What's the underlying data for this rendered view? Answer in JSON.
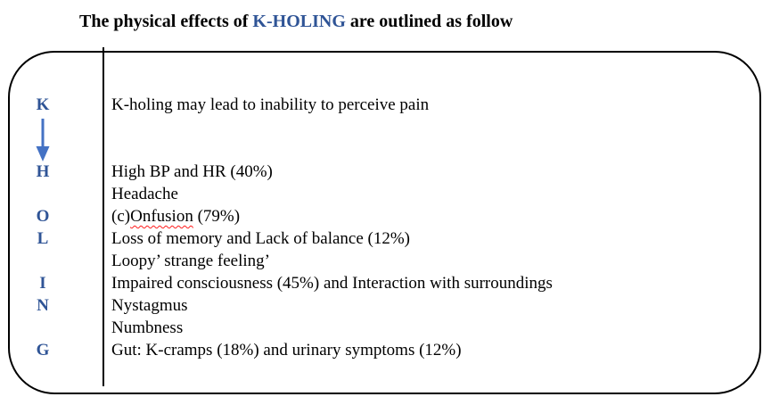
{
  "title": {
    "prefix": "The physical effects of ",
    "highlight": "K-HOLING",
    "suffix": " are outlined as follow"
  },
  "colors": {
    "mnemonic_blue": "#2F5496",
    "arrow_blue": "#4472C4",
    "squiggle_red": "#ff1a1a",
    "border_black": "#000000"
  },
  "icons": {
    "down_arrow": "down-arrow"
  },
  "rows": [
    {
      "letter": "K",
      "text": "K-holing may lead to inability to perceive pain"
    },
    {
      "letter": "",
      "text": ""
    },
    {
      "letter": "",
      "text": ""
    },
    {
      "letter": "H",
      "text": "High BP and HR (40%)"
    },
    {
      "letter": "",
      "text": "Headache"
    },
    {
      "letter": "O",
      "text_parts": [
        {
          "t": "(c)"
        },
        {
          "t": "Onfusion",
          "misspelled": true
        },
        {
          "t": " (79%)"
        }
      ]
    },
    {
      "letter": "L",
      "text": "Loss of memory and Lack of balance (12%)"
    },
    {
      "letter": "",
      "text": "Loopy’ strange feeling’"
    },
    {
      "letter": "I",
      "text": "Impaired consciousness (45%) and Interaction with surroundings"
    },
    {
      "letter": "N",
      "text": "Nystagmus"
    },
    {
      "letter": "",
      "text": "Numbness"
    },
    {
      "letter": "G",
      "text": "Gut: K-cramps (18%) and urinary symptoms (12%)"
    }
  ]
}
